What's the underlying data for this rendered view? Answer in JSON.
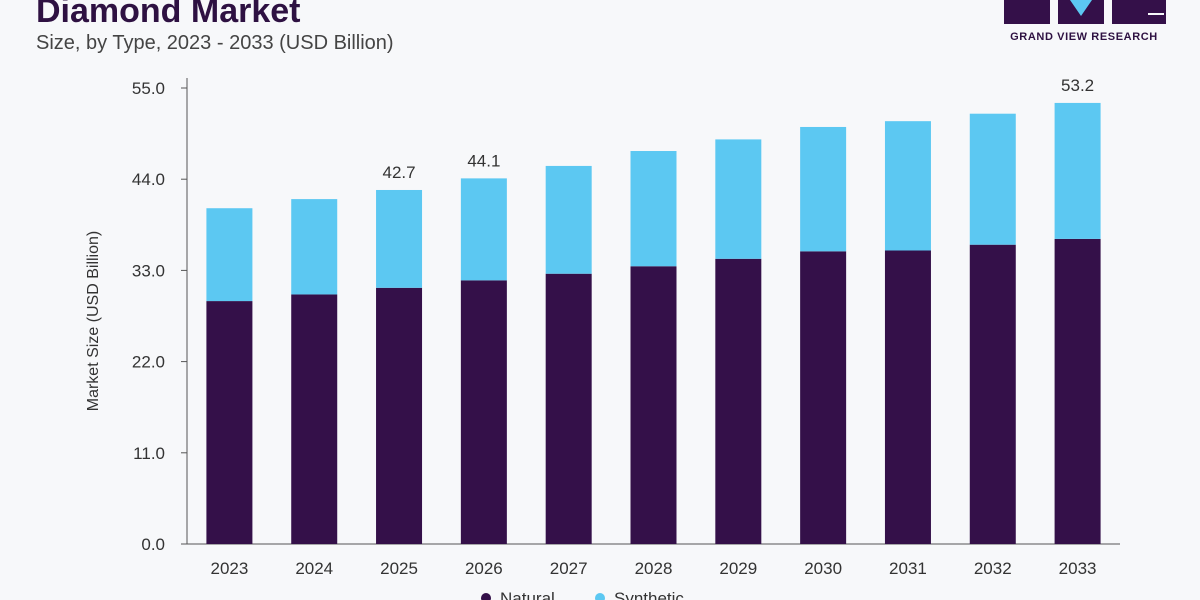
{
  "header": {
    "title": "Diamond Market",
    "subtitle": "Size, by Type, 2023 - 2033 (USD Billion)"
  },
  "logo": {
    "text": "GRAND VIEW RESEARCH"
  },
  "colors": {
    "natural": "#341049",
    "synthetic": "#5cc8f2",
    "title": "#2e1142"
  },
  "chart_data": {
    "type": "bar",
    "stacked": true,
    "categories": [
      "2023",
      "2024",
      "2025",
      "2026",
      "2027",
      "2028",
      "2029",
      "2030",
      "2031",
      "2032",
      "2033"
    ],
    "series": [
      {
        "name": "Natural",
        "values": [
          29.3,
          30.1,
          30.9,
          31.8,
          32.6,
          33.5,
          34.4,
          35.3,
          35.4,
          36.1,
          36.8
        ]
      },
      {
        "name": "Synthetic",
        "values": [
          11.2,
          11.5,
          11.8,
          12.3,
          13.0,
          13.9,
          14.4,
          15.0,
          15.6,
          15.8,
          16.4
        ]
      }
    ],
    "totals": [
      40.5,
      41.6,
      42.7,
      44.1,
      45.6,
      47.4,
      48.8,
      50.3,
      51.0,
      51.9,
      53.2
    ],
    "data_labels": [
      {
        "category": "2025",
        "text": "42.7"
      },
      {
        "category": "2026",
        "text": "44.1"
      },
      {
        "category": "2033",
        "text": "53.2"
      }
    ],
    "ylabel": "Market Size (USD Billion)",
    "yticks": [
      "0.0",
      "11.0",
      "22.0",
      "33.0",
      "44.0",
      "55.0"
    ],
    "ylim": [
      0,
      55
    ],
    "legend_position": "bottom",
    "grid": false
  }
}
